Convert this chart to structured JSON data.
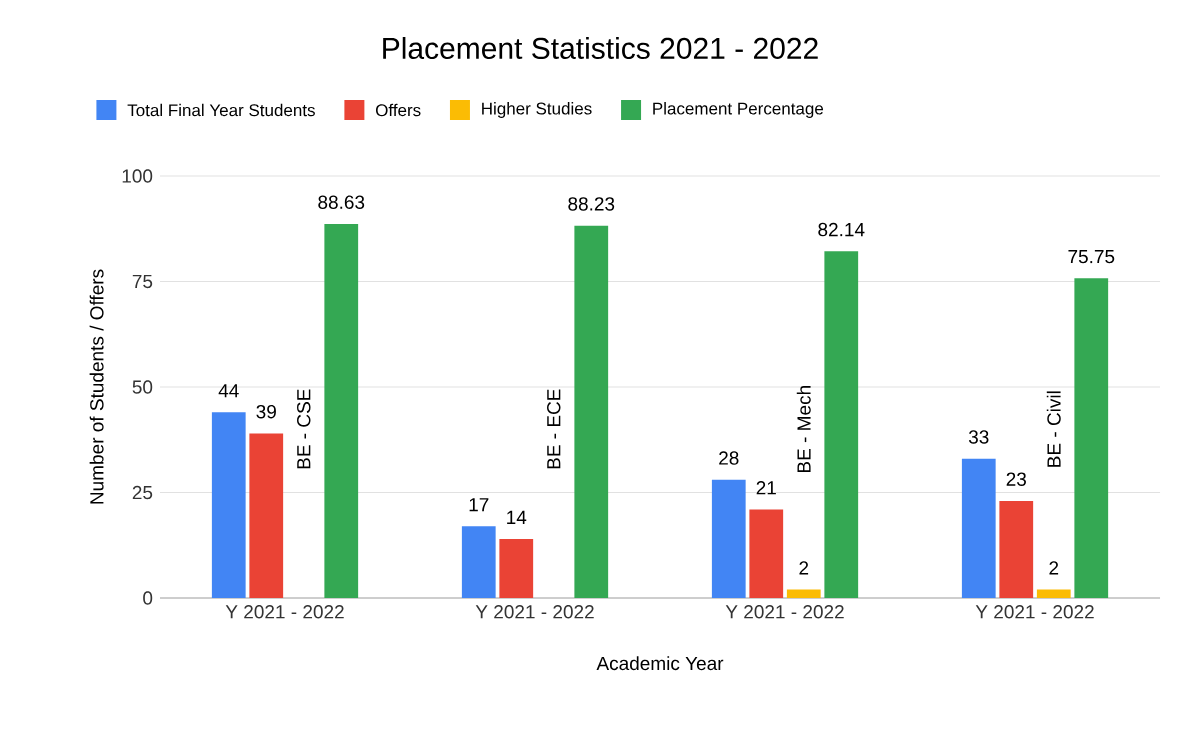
{
  "chart_data": {
    "type": "bar",
    "title": "Placement Statistics 2021 - 2022",
    "xlabel": "Academic Year",
    "ylabel": "Number of Students / Offers",
    "categories": [
      "Y 2021 - 2022",
      "Y 2021 - 2022",
      "Y 2021 - 2022",
      "Y 2021 - 2022"
    ],
    "series": [
      {
        "name": "Total Final Year Students",
        "color": "#4285f4",
        "values": [
          44,
          17,
          28,
          33
        ]
      },
      {
        "name": "Offers",
        "color": "#ea4335",
        "values": [
          39,
          14,
          21,
          23
        ]
      },
      {
        "name": "Higher Studies",
        "color": "#fbbc04",
        "values": [
          null,
          null,
          2,
          2
        ]
      },
      {
        "name": "Placement Percentage",
        "color": "#34a853",
        "values": [
          88.63,
          88.23,
          82.14,
          75.75
        ]
      }
    ],
    "annotations": [
      "BE - CSE",
      "BE - ECE",
      "BE - Mech",
      "BE - Civil"
    ],
    "ylim": [
      0,
      100
    ],
    "yticks": [
      0,
      25,
      50,
      75,
      100
    ],
    "grid": "y",
    "legend": "top",
    "data_labels": true
  }
}
